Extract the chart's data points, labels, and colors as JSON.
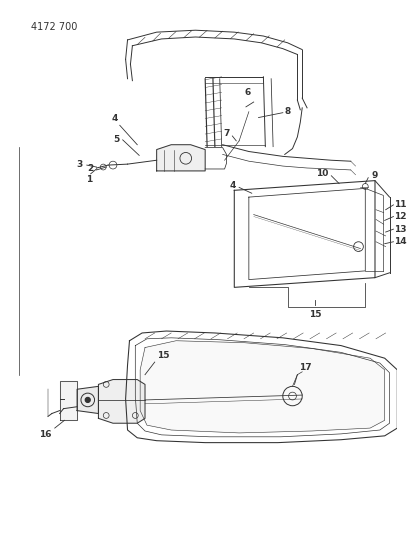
{
  "background_color": "#ffffff",
  "fig_width": 4.08,
  "fig_height": 5.33,
  "dpi": 100,
  "header_text": "4172 700",
  "line_color": "#333333",
  "label_color": "#111111",
  "lw": 0.7
}
